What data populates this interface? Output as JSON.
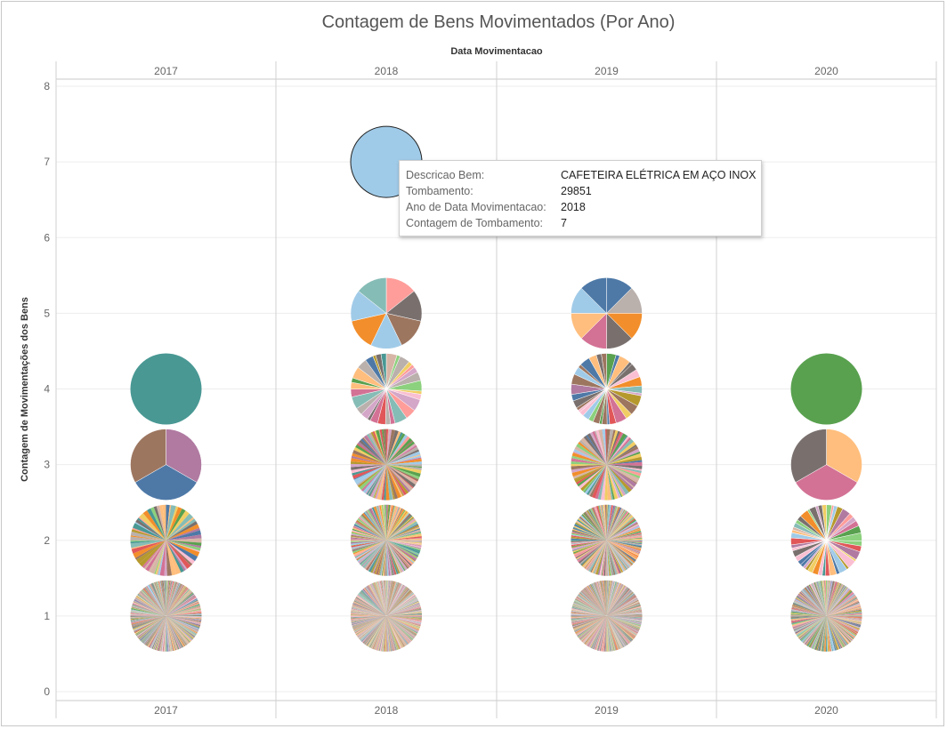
{
  "title": "Contagem de Bens Movimentados (Por Ano)",
  "column_header_title": "Data Movimentacao",
  "y_axis_title": "Contagem de Movimentações dos Bens",
  "chart_data": {
    "type": "scatter",
    "mark": "pie",
    "title": "Contagem de Bens Movimentados (Por Ano)",
    "columns_label": "Data Movimentacao",
    "ylabel": "Contagem de Movimentações dos Bens",
    "columns": [
      "2017",
      "2018",
      "2019",
      "2020"
    ],
    "y_ticks": [
      0,
      1,
      2,
      3,
      4,
      5,
      6,
      7,
      8
    ],
    "ylim": [
      0,
      8
    ],
    "grid": true,
    "pies": [
      {
        "column": "2017",
        "y": 1,
        "slices": 600
      },
      {
        "column": "2017",
        "y": 2,
        "slices": 70
      },
      {
        "column": "2017",
        "y": 3,
        "slices": 3
      },
      {
        "column": "2017",
        "y": 4,
        "slices": 1
      },
      {
        "column": "2018",
        "y": 1,
        "slices": 800
      },
      {
        "column": "2018",
        "y": 2,
        "slices": 220
      },
      {
        "column": "2018",
        "y": 3,
        "slices": 100
      },
      {
        "column": "2018",
        "y": 4,
        "slices": 30
      },
      {
        "column": "2018",
        "y": 5,
        "slices": 7
      },
      {
        "column": "2018",
        "y": 7,
        "slices": 1
      },
      {
        "column": "2019",
        "y": 1,
        "slices": 800
      },
      {
        "column": "2019",
        "y": 2,
        "slices": 240
      },
      {
        "column": "2019",
        "y": 3,
        "slices": 90
      },
      {
        "column": "2019",
        "y": 4,
        "slices": 33
      },
      {
        "column": "2019",
        "y": 5,
        "slices": 8
      },
      {
        "column": "2020",
        "y": 1,
        "slices": 400
      },
      {
        "column": "2020",
        "y": 2,
        "slices": 45
      },
      {
        "column": "2020",
        "y": 3,
        "slices": 3
      },
      {
        "column": "2020",
        "y": 4,
        "slices": 1
      }
    ],
    "tooltip": {
      "rows": [
        {
          "label": "Descricao Bem:",
          "value": "CAFETEIRA ELÉTRICA EM AÇO INOX"
        },
        {
          "label": "Tombamento:",
          "value": "29851"
        },
        {
          "label": "Ano de Data Movimentacao:",
          "value": "2018"
        },
        {
          "label": "Contagem de Tombamento:",
          "value": "7"
        }
      ]
    }
  },
  "palette": [
    "#4e79a7",
    "#a0cbe8",
    "#f28e2b",
    "#ffbe7d",
    "#59a14f",
    "#8cd17d",
    "#b6992d",
    "#f1ce63",
    "#499894",
    "#86bcb6",
    "#e15759",
    "#ff9d9a",
    "#79706e",
    "#bab0ac",
    "#d37295",
    "#fabfd2",
    "#b07aa1",
    "#d4a6c8",
    "#9d7660",
    "#d7b5a6"
  ],
  "colors": {
    "single_2017_y4": "#499894",
    "single_2018_y7": "#a0cbe8",
    "single_2020_y4": "#59a14f",
    "three_2017": [
      "#b07aa1",
      "#4e79a7",
      "#9d7660"
    ],
    "three_2020": [
      "#ffbe7d",
      "#d37295",
      "#79706e"
    ],
    "seven_2018": [
      "#ff9d9a",
      "#79706e",
      "#9d7660",
      "#a0cbe8",
      "#f28e2b",
      "#a0cbe8",
      "#86bcb6"
    ],
    "eight_2019": [
      "#4e79a7",
      "#bab0ac",
      "#f28e2b",
      "#79706e",
      "#d37295",
      "#ffbe7d",
      "#a0cbe8",
      "#4e79a7"
    ]
  }
}
